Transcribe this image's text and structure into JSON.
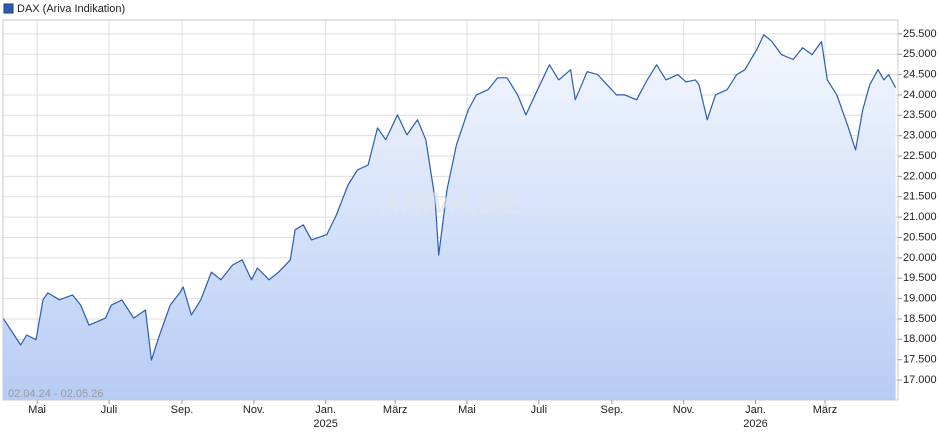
{
  "chart_data": {
    "type": "line",
    "legend": "DAX (Ariva Indikation)",
    "watermark": "ARIVA.DE",
    "date_range": "02.04.24 - 02.05.26",
    "xlim": [
      "2024-04-02",
      "2026-05-02"
    ],
    "ylim": [
      16510,
      25840
    ],
    "yticks": [
      {
        "value": 17000,
        "label": "17.000"
      },
      {
        "value": 17500,
        "label": "17.500"
      },
      {
        "value": 18000,
        "label": "18.000"
      },
      {
        "value": 18500,
        "label": "18.500"
      },
      {
        "value": 19000,
        "label": "19.000"
      },
      {
        "value": 19500,
        "label": "19.500"
      },
      {
        "value": 20000,
        "label": "20.000"
      },
      {
        "value": 20500,
        "label": "20.500"
      },
      {
        "value": 21000,
        "label": "21.000"
      },
      {
        "value": 21500,
        "label": "21.500"
      },
      {
        "value": 22000,
        "label": "22.000"
      },
      {
        "value": 22500,
        "label": "22.500"
      },
      {
        "value": 23000,
        "label": "23.000"
      },
      {
        "value": 23500,
        "label": "23.500"
      },
      {
        "value": 24000,
        "label": "24.000"
      },
      {
        "value": 24500,
        "label": "24.500"
      },
      {
        "value": 25000,
        "label": "25.000"
      },
      {
        "value": 25500,
        "label": "25.500"
      }
    ],
    "xticks": [
      {
        "value": "2024-05-01",
        "label": "Mai"
      },
      {
        "value": "2024-07-01",
        "label": "Juli"
      },
      {
        "value": "2024-09-01",
        "label": "Sep."
      },
      {
        "value": "2024-11-01",
        "label": "Nov."
      },
      {
        "value": "2025-01-01",
        "label": "Jan.\n2025"
      },
      {
        "value": "2025-03-01",
        "label": "März"
      },
      {
        "value": "2025-05-01",
        "label": "Mai"
      },
      {
        "value": "2025-07-01",
        "label": "Juli"
      },
      {
        "value": "2025-09-01",
        "label": "Sep."
      },
      {
        "value": "2025-11-01",
        "label": "Nov."
      },
      {
        "value": "2026-01-01",
        "label": "Jan.\n2026"
      },
      {
        "value": "2026-03-01",
        "label": "März"
      }
    ],
    "grid": true,
    "series": [
      {
        "name": "DAX (Ariva Indikation)",
        "color": "#2a5db0",
        "x": [
          "2024-04-02",
          "2024-04-17",
          "2024-04-22",
          "2024-04-30",
          "2024-05-06",
          "2024-05-10",
          "2024-05-20",
          "2024-05-31",
          "2024-06-07",
          "2024-06-14",
          "2024-06-24",
          "2024-06-28",
          "2024-07-03",
          "2024-07-12",
          "2024-07-22",
          "2024-08-01",
          "2024-08-06",
          "2024-08-13",
          "2024-08-22",
          "2024-08-30",
          "2024-09-02",
          "2024-09-09",
          "2024-09-17",
          "2024-09-26",
          "2024-10-04",
          "2024-10-14",
          "2024-10-22",
          "2024-10-30",
          "2024-11-04",
          "2024-11-14",
          "2024-11-22",
          "2024-12-02",
          "2024-12-06",
          "2024-12-13",
          "2024-12-20",
          "2025-01-02",
          "2025-01-10",
          "2025-01-20",
          "2025-01-28",
          "2025-02-06",
          "2025-02-14",
          "2025-02-21",
          "2025-03-03",
          "2025-03-11",
          "2025-03-20",
          "2025-03-27",
          "2025-04-04",
          "2025-04-07",
          "2025-04-14",
          "2025-04-22",
          "2025-05-02",
          "2025-05-09",
          "2025-05-19",
          "2025-05-27",
          "2025-06-04",
          "2025-06-13",
          "2025-06-20",
          "2025-06-30",
          "2025-07-10",
          "2025-07-18",
          "2025-07-28",
          "2025-08-01",
          "2025-08-11",
          "2025-08-20",
          "2025-08-28",
          "2025-09-05",
          "2025-09-12",
          "2025-09-22",
          "2025-10-01",
          "2025-10-09",
          "2025-10-17",
          "2025-10-27",
          "2025-11-03",
          "2025-11-11",
          "2025-11-14",
          "2025-11-21",
          "2025-11-28",
          "2025-12-08",
          "2025-12-16",
          "2025-12-23",
          "2026-01-02",
          "2026-01-08",
          "2026-01-15",
          "2026-01-23",
          "2026-02-02",
          "2026-02-10",
          "2026-02-18",
          "2026-02-26",
          "2026-03-03",
          "2026-03-11",
          "2026-03-20",
          "2026-03-27",
          "2026-04-02",
          "2026-04-08",
          "2026-04-15",
          "2026-04-20",
          "2026-04-24",
          "2026-04-30"
        ],
        "values": [
          18520,
          17860,
          18105,
          17990,
          18970,
          19140,
          18970,
          19090,
          18840,
          18350,
          18470,
          18520,
          18840,
          18965,
          18520,
          18720,
          17490,
          18110,
          18840,
          19140,
          19285,
          18600,
          18970,
          19650,
          19460,
          19825,
          19950,
          19460,
          19750,
          19460,
          19650,
          19950,
          20690,
          20810,
          20440,
          20570,
          21050,
          21790,
          22160,
          22280,
          23190,
          22900,
          23510,
          23020,
          23390,
          22900,
          21420,
          20070,
          21670,
          22770,
          23630,
          24000,
          24130,
          24420,
          24420,
          24000,
          23510,
          24130,
          24740,
          24370,
          24620,
          23880,
          24570,
          24500,
          24250,
          24000,
          24000,
          23880,
          24370,
          24740,
          24370,
          24500,
          24320,
          24370,
          24250,
          23390,
          24000,
          24130,
          24500,
          24620,
          25110,
          25480,
          25310,
          24990,
          24870,
          25160,
          24990,
          25310,
          24370,
          24000,
          23270,
          22650,
          23630,
          24250,
          24620,
          24370,
          24500,
          24180
        ]
      }
    ]
  }
}
